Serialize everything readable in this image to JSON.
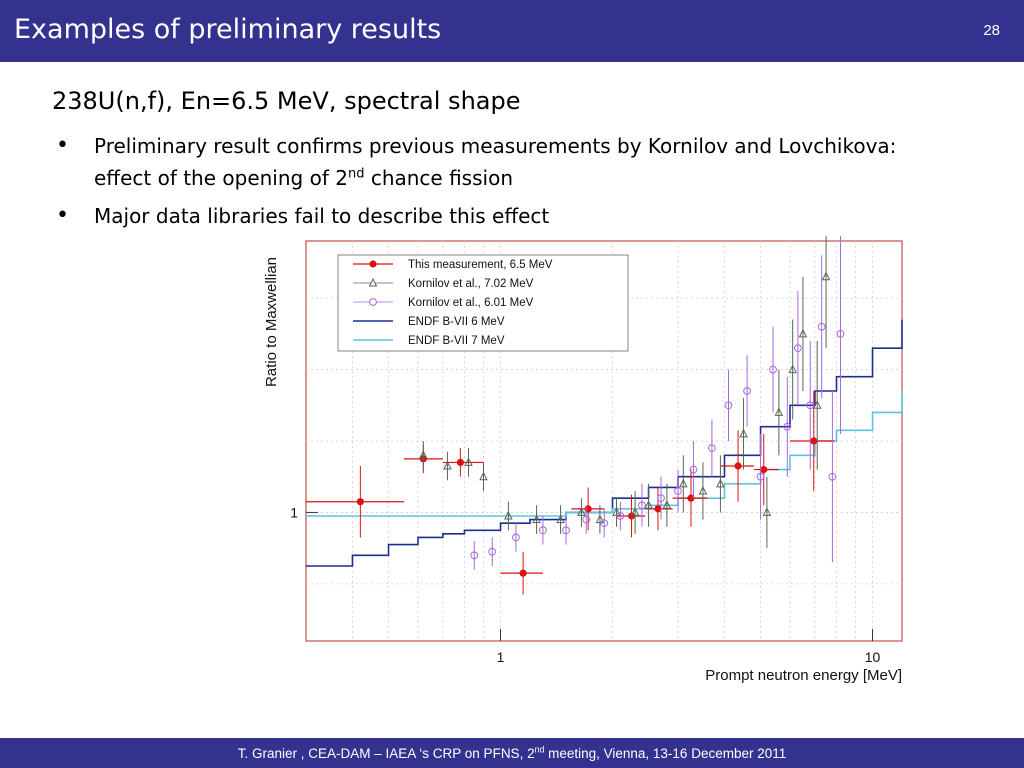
{
  "header": {
    "title": "Examples of preliminary results",
    "page_number": "28"
  },
  "subtitle": "238U(n,f), En=6.5 MeV, spectral shape",
  "bullets": {
    "b1_text": "Preliminary result confirms previous measurements by Kornilov and Lovchikova: effect of the opening of 2",
    "b1_sup": "nd",
    "b1_tail": " chance fission",
    "b2_text": "Major data libraries fail to describe this effect"
  },
  "footer": {
    "prefix": "T. Granier ,  CEA-DAM – IAEA ‘s CRP on PFNS, 2",
    "sup": "nd",
    "suffix": " meeting,  Vienna, 13-16 December 2011"
  },
  "chart_data": {
    "type": "scatter",
    "xlabel": "Prompt neutron energy [MeV]",
    "ylabel": "Ratio to Maxwellian",
    "x_scale": "log",
    "xlim": [
      0.3,
      12
    ],
    "ylim": [
      0.82,
      1.38
    ],
    "x_ticks": [
      {
        "value": 1,
        "label": "1"
      },
      {
        "value": 10,
        "label": "10"
      }
    ],
    "y_ticks": [
      {
        "value": 1,
        "label": "1"
      }
    ],
    "grid": true,
    "legend_position": "top-left",
    "colors": {
      "this": "#dd1111",
      "k702": "#556655",
      "k601": "#aa66dd",
      "endf6": "#1a2f8f",
      "endf7": "#5ec4dd"
    },
    "series": [
      {
        "name": "This measurement, 6.5 MeV",
        "style": "marker-line",
        "points": [
          {
            "x": 0.42,
            "y": 1.015,
            "xerr": [
              0.3,
              0.55
            ],
            "yerr": 0.05
          },
          {
            "x": 0.62,
            "y": 1.075,
            "xerr": [
              0.55,
              0.7
            ],
            "yerr": 0.02
          },
          {
            "x": 0.78,
            "y": 1.07,
            "xerr": [
              0.7,
              0.9
            ],
            "yerr": 0.02
          },
          {
            "x": 1.15,
            "y": 0.915,
            "xerr": [
              1.0,
              1.3
            ],
            "yerr": 0.03
          },
          {
            "x": 1.72,
            "y": 1.005,
            "xerr": [
              1.55,
              1.9
            ],
            "yerr": 0.03
          },
          {
            "x": 2.25,
            "y": 0.995,
            "xerr": [
              2.05,
              2.45
            ],
            "yerr": 0.03
          },
          {
            "x": 2.65,
            "y": 1.005,
            "xerr": [
              2.45,
              2.9
            ],
            "yerr": 0.03
          },
          {
            "x": 3.25,
            "y": 1.02,
            "xerr": [
              2.9,
              3.6
            ],
            "yerr": 0.04
          },
          {
            "x": 4.35,
            "y": 1.065,
            "xerr": [
              3.9,
              4.8
            ],
            "yerr": 0.05
          },
          {
            "x": 5.1,
            "y": 1.06,
            "xerr": [
              4.8,
              5.6
            ],
            "yerr": 0.05
          },
          {
            "x": 6.95,
            "y": 1.1,
            "xerr": [
              6.0,
              7.9
            ],
            "yerr": 0.07
          }
        ]
      },
      {
        "name": "Kornilov et al., 7.02 MeV",
        "style": "marker-triangle",
        "points": [
          {
            "x": 0.62,
            "y": 1.08,
            "yerr": 0.02
          },
          {
            "x": 0.72,
            "y": 1.065,
            "yerr": 0.02
          },
          {
            "x": 0.82,
            "y": 1.07,
            "yerr": 0.02
          },
          {
            "x": 0.9,
            "y": 1.05,
            "yerr": 0.02
          },
          {
            "x": 1.05,
            "y": 0.995,
            "yerr": 0.02
          },
          {
            "x": 1.25,
            "y": 0.99,
            "yerr": 0.02
          },
          {
            "x": 1.45,
            "y": 0.99,
            "yerr": 0.02
          },
          {
            "x": 1.65,
            "y": 1.0,
            "yerr": 0.02
          },
          {
            "x": 1.85,
            "y": 0.99,
            "yerr": 0.02
          },
          {
            "x": 2.05,
            "y": 1.0,
            "yerr": 0.02
          },
          {
            "x": 2.3,
            "y": 1.0,
            "yerr": 0.03
          },
          {
            "x": 2.5,
            "y": 1.01,
            "yerr": 0.03
          },
          {
            "x": 2.8,
            "y": 1.01,
            "yerr": 0.03
          },
          {
            "x": 3.1,
            "y": 1.04,
            "yerr": 0.04
          },
          {
            "x": 3.5,
            "y": 1.03,
            "yerr": 0.04
          },
          {
            "x": 3.9,
            "y": 1.04,
            "yerr": 0.04
          },
          {
            "x": 4.5,
            "y": 1.11,
            "yerr": 0.05
          },
          {
            "x": 5.2,
            "y": 1.0,
            "yerr": 0.05
          },
          {
            "x": 5.6,
            "y": 1.14,
            "yerr": 0.06
          },
          {
            "x": 6.1,
            "y": 1.2,
            "yerr": 0.07
          },
          {
            "x": 6.5,
            "y": 1.25,
            "yerr": 0.08
          },
          {
            "x": 7.1,
            "y": 1.15,
            "yerr": 0.09
          },
          {
            "x": 7.5,
            "y": 1.33,
            "yerr": 0.1
          }
        ]
      },
      {
        "name": "Kornilov et al., 6.01 MeV",
        "style": "marker-circle",
        "points": [
          {
            "x": 0.85,
            "y": 0.94,
            "yerr": 0.02
          },
          {
            "x": 0.95,
            "y": 0.945,
            "yerr": 0.02
          },
          {
            "x": 1.1,
            "y": 0.965,
            "yerr": 0.02
          },
          {
            "x": 1.3,
            "y": 0.975,
            "yerr": 0.02
          },
          {
            "x": 1.5,
            "y": 0.975,
            "yerr": 0.02
          },
          {
            "x": 1.7,
            "y": 0.99,
            "yerr": 0.02
          },
          {
            "x": 1.9,
            "y": 0.985,
            "yerr": 0.02
          },
          {
            "x": 2.1,
            "y": 0.995,
            "yerr": 0.02
          },
          {
            "x": 2.4,
            "y": 1.01,
            "yerr": 0.03
          },
          {
            "x": 2.7,
            "y": 1.02,
            "yerr": 0.03
          },
          {
            "x": 3.0,
            "y": 1.03,
            "yerr": 0.03
          },
          {
            "x": 3.3,
            "y": 1.06,
            "yerr": 0.04
          },
          {
            "x": 3.7,
            "y": 1.09,
            "yerr": 0.04
          },
          {
            "x": 4.1,
            "y": 1.15,
            "yerr": 0.05
          },
          {
            "x": 4.6,
            "y": 1.17,
            "yerr": 0.05
          },
          {
            "x": 5.0,
            "y": 1.05,
            "yerr": 0.06
          },
          {
            "x": 5.4,
            "y": 1.2,
            "yerr": 0.06
          },
          {
            "x": 5.9,
            "y": 1.12,
            "yerr": 0.07
          },
          {
            "x": 6.3,
            "y": 1.23,
            "yerr": 0.08
          },
          {
            "x": 6.8,
            "y": 1.15,
            "yerr": 0.09
          },
          {
            "x": 7.3,
            "y": 1.26,
            "yerr": 0.1
          },
          {
            "x": 7.8,
            "y": 1.05,
            "yerr": 0.12
          },
          {
            "x": 8.2,
            "y": 1.25,
            "yerr": 0.14
          }
        ]
      },
      {
        "name": "ENDF B-VII 6 MeV",
        "style": "line",
        "x": [
          0.3,
          0.4,
          0.5,
          0.6,
          0.7,
          0.8,
          1.0,
          1.2,
          1.5,
          2.0,
          2.5,
          3.0,
          4.0,
          5.0,
          6.0,
          7.0,
          8.0,
          10.0,
          12.0
        ],
        "y": [
          0.925,
          0.94,
          0.955,
          0.965,
          0.97,
          0.975,
          0.985,
          0.99,
          1.0,
          1.02,
          1.035,
          1.05,
          1.08,
          1.12,
          1.15,
          1.17,
          1.19,
          1.23,
          1.27
        ]
      },
      {
        "name": "ENDF B-VII 7 MeV",
        "style": "line",
        "x": [
          0.3,
          0.5,
          0.8,
          1.0,
          1.5,
          2.0,
          2.5,
          3.0,
          4.0,
          5.0,
          6.0,
          7.0,
          8.0,
          10.0,
          12.0
        ],
        "y": [
          0.995,
          0.995,
          0.995,
          0.995,
          1.0,
          1.005,
          1.01,
          1.02,
          1.04,
          1.06,
          1.08,
          1.1,
          1.115,
          1.14,
          1.17
        ]
      }
    ]
  }
}
